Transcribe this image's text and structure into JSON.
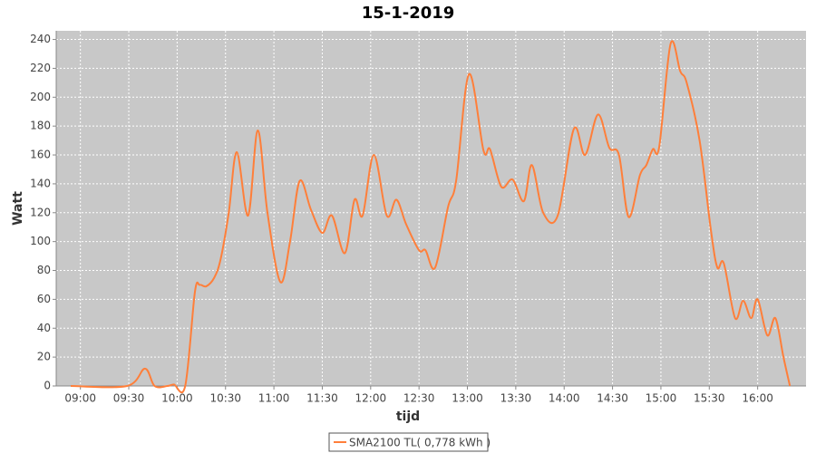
{
  "chart_data": {
    "type": "line",
    "title": "15-1-2019",
    "x_label": "tijd",
    "y_label": "Watt",
    "x": [
      "08:54",
      "09:29",
      "09:40",
      "09:46",
      "09:54",
      "09:58",
      "10:05",
      "10:11",
      "10:14",
      "10:18",
      "10:23",
      "10:27",
      "10:32",
      "10:37",
      "10:44",
      "10:50",
      "10:56",
      "11:04",
      "11:10",
      "11:16",
      "11:23",
      "11:30",
      "11:36",
      "11:44",
      "11:50",
      "11:55",
      "12:02",
      "12:10",
      "12:16",
      "12:22",
      "12:30",
      "12:34",
      "12:40",
      "12:48",
      "12:53",
      "13:01",
      "13:10",
      "13:14",
      "13:21",
      "13:28",
      "13:35",
      "13:40",
      "13:47",
      "13:56",
      "14:06",
      "14:13",
      "14:21",
      "14:28",
      "14:34",
      "14:40",
      "14:47",
      "14:51",
      "14:55",
      "14:59",
      "15:06",
      "15:12",
      "15:16",
      "15:24",
      "15:31",
      "15:35",
      "15:39",
      "15:46",
      "15:51",
      "15:56",
      "16:00",
      "16:06",
      "16:11",
      "16:16",
      "16:20"
    ],
    "series": [
      {
        "name": "SMA2100 TL( 0,778 kWh )",
        "color": "#ff7f3a",
        "values": [
          0,
          0,
          12,
          0,
          0,
          1,
          0,
          65,
          70,
          69,
          75,
          88,
          120,
          162,
          118,
          177,
          120,
          72,
          100,
          142,
          122,
          106,
          118,
          92,
          129,
          118,
          160,
          118,
          129,
          112,
          94,
          94,
          82,
          124,
          142,
          216,
          163,
          164,
          138,
          143,
          128,
          153,
          120,
          118,
          178,
          160,
          188,
          165,
          160,
          117,
          146,
          153,
          164,
          166,
          237,
          218,
          210,
          170,
          108,
          82,
          85,
          47,
          59,
          47,
          60,
          35,
          47,
          20,
          0
        ]
      }
    ],
    "xlim": [
      "08:45",
      "16:30"
    ],
    "xticks": [
      "09:00",
      "09:30",
      "10:00",
      "10:30",
      "11:00",
      "11:30",
      "12:00",
      "12:30",
      "13:00",
      "13:30",
      "14:00",
      "14:30",
      "15:00",
      "15:30",
      "16:00"
    ],
    "ylim": [
      0,
      246
    ],
    "yticks": [
      0,
      20,
      40,
      60,
      80,
      100,
      120,
      140,
      160,
      180,
      200,
      220,
      240
    ],
    "grid": true,
    "legend": "bottom"
  }
}
